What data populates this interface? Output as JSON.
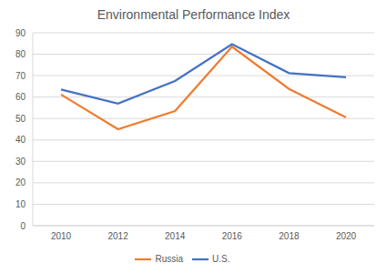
{
  "chart_data": {
    "type": "line",
    "title": "Environmental Performance Index",
    "categories": [
      "2010",
      "2012",
      "2014",
      "2016",
      "2018",
      "2020"
    ],
    "series": [
      {
        "name": "U.S.",
        "color": "#4472c4",
        "values": [
          63.5,
          57,
          67.5,
          84.7,
          71.2,
          69.3
        ]
      },
      {
        "name": "Russia",
        "color": "#ed7d31",
        "values": [
          61.2,
          45,
          53.5,
          83.5,
          63.8,
          50.5
        ]
      }
    ],
    "ylim": [
      0,
      90
    ],
    "yticks": [
      0,
      10,
      20,
      30,
      40,
      50,
      60,
      70,
      80,
      90
    ],
    "grid": true,
    "legend": "bottom"
  }
}
